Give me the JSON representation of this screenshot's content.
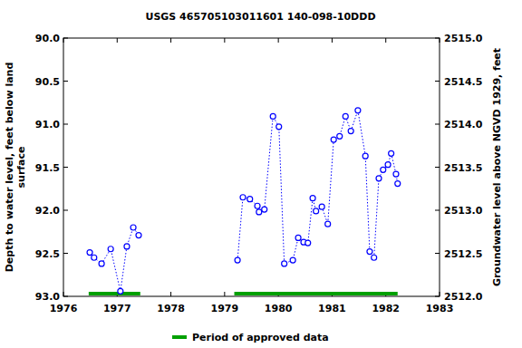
{
  "chart_data": {
    "type": "line",
    "title": "USGS 465705103011601 140-098-10DDD",
    "y_label": [
      "Depth to water level, feet below land",
      "surface"
    ],
    "y2_label": "Groundwater level above NGVD 1929, feet",
    "x": [
      1976.49,
      1976.57,
      1976.71,
      1976.88,
      1977.06,
      1977.18,
      1977.3,
      1977.4,
      null,
      1979.24,
      1979.34,
      1979.47,
      1979.61,
      1979.64,
      1979.74,
      1979.9,
      1980.01,
      1980.11,
      1980.27,
      1980.37,
      1980.47,
      1980.55,
      1980.64,
      1980.7,
      1980.81,
      1980.92,
      1981.03,
      1981.14,
      1981.25,
      1981.35,
      1981.48,
      1981.62,
      1981.7,
      1981.78,
      1981.87,
      1981.95,
      1982.04,
      1982.1,
      1982.19,
      1982.22
    ],
    "series": [
      {
        "name": "Depth to water level",
        "color": "#0000ff",
        "marker": "open-circle",
        "line_style": "dotted",
        "values": [
          92.49,
          92.55,
          92.62,
          92.45,
          92.94,
          92.42,
          92.2,
          92.29,
          null,
          92.58,
          91.85,
          91.87,
          91.95,
          92.02,
          91.99,
          90.91,
          91.03,
          92.62,
          92.58,
          92.32,
          92.37,
          92.38,
          91.86,
          92.01,
          91.96,
          92.16,
          91.18,
          91.14,
          90.91,
          91.08,
          90.84,
          91.37,
          92.48,
          92.55,
          91.63,
          91.53,
          91.47,
          91.34,
          91.58,
          91.69
        ]
      }
    ],
    "xlim": [
      1976,
      1983
    ],
    "xticks": [
      1976,
      1977,
      1978,
      1979,
      1980,
      1981,
      1982,
      1983
    ],
    "ylim": [
      93,
      90
    ],
    "yticks": [
      {
        "value": 90,
        "label": "90.0"
      },
      {
        "value": 90.5,
        "label": "90.5"
      },
      {
        "value": 91,
        "label": "91.0"
      },
      {
        "value": 91.5,
        "label": "91.5"
      },
      {
        "value": 92,
        "label": "92.0"
      },
      {
        "value": 92.5,
        "label": "92.5"
      },
      {
        "value": 93,
        "label": "93.0"
      }
    ],
    "y2lim": [
      2512,
      2515
    ],
    "y2ticks": [
      {
        "value": 2515,
        "label": "2515.0"
      },
      {
        "value": 2514.5,
        "label": "2514.5"
      },
      {
        "value": 2514,
        "label": "2514.0"
      },
      {
        "value": 2513.5,
        "label": "2513.5"
      },
      {
        "value": 2513,
        "label": "2513.0"
      },
      {
        "value": 2512.5,
        "label": "2512.5"
      },
      {
        "value": 2512,
        "label": "2512.0"
      }
    ],
    "approved_periods": [
      [
        1976.47,
        1977.43
      ],
      [
        1979.18,
        1982.22
      ]
    ],
    "approved_label": "Period of approved data",
    "approved_color": "#00a000"
  }
}
